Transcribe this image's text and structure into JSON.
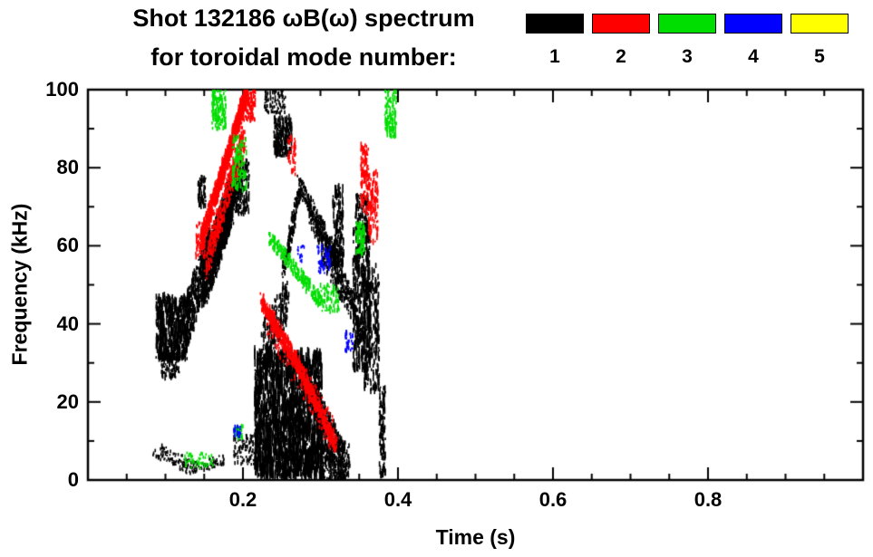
{
  "chart_data": {
    "type": "scatter",
    "title": "Shot 132186 ωB(ω) spectrum",
    "subtitle": "for toroidal mode number:",
    "xlabel": "Time (s)",
    "ylabel": "Frequency (kHz)",
    "xlim": [
      0.0,
      1.0
    ],
    "ylim": [
      0,
      100
    ],
    "x_minor": 0.05,
    "y_minor": 10,
    "grid": false,
    "legend_position": "top-right",
    "xticks": [
      {
        "value": 0.2,
        "label": "0.2"
      },
      {
        "value": 0.4,
        "label": "0.4"
      },
      {
        "value": 0.6,
        "label": "0.6"
      },
      {
        "value": 0.8,
        "label": "0.8"
      }
    ],
    "yticks": [
      {
        "value": 0,
        "label": "0"
      },
      {
        "value": 20,
        "label": "20"
      },
      {
        "value": 40,
        "label": "40"
      },
      {
        "value": 60,
        "label": "60"
      },
      {
        "value": 80,
        "label": "80"
      },
      {
        "value": 100,
        "label": "100"
      }
    ],
    "series": [
      {
        "name": "1",
        "color": "#000000",
        "features": [
          {
            "k": "blob",
            "x": [
              0.088,
              0.128
            ],
            "f": [
              31,
              47
            ],
            "n": 550,
            "d": 9
          },
          {
            "k": "blob",
            "x": [
              0.095,
              0.118
            ],
            "f": [
              26,
              33
            ],
            "n": 120,
            "d": 4
          },
          {
            "k": "stroke",
            "x": [
              0.124,
              0.156
            ],
            "f": [
              38,
              58
            ],
            "w": 7,
            "n": 420,
            "d": 6
          },
          {
            "k": "stroke",
            "x": [
              0.148,
              0.186
            ],
            "f": [
              50,
              72
            ],
            "w": 7,
            "n": 750,
            "d": 7
          },
          {
            "k": "stroke",
            "x": [
              0.168,
              0.198
            ],
            "f": [
              62,
              81
            ],
            "w": 5,
            "n": 520,
            "d": 6
          },
          {
            "k": "blob",
            "x": [
              0.19,
              0.208
            ],
            "f": [
              68,
              82
            ],
            "n": 160,
            "d": 5
          },
          {
            "k": "blob",
            "x": [
              0.142,
              0.152
            ],
            "f": [
              70,
              78
            ],
            "n": 70,
            "d": 5
          },
          {
            "k": "blob",
            "x": [
              0.24,
              0.263
            ],
            "f": [
              83,
              93
            ],
            "n": 240,
            "d": 6
          },
          {
            "k": "blob",
            "x": [
              0.228,
              0.255
            ],
            "f": [
              94,
              100
            ],
            "n": 90,
            "d": 3
          },
          {
            "k": "stroke",
            "x": [
              0.085,
              0.135
            ],
            "f": [
              8,
              3
            ],
            "w": 2,
            "n": 100,
            "d": 2
          },
          {
            "k": "stroke",
            "x": [
              0.135,
              0.175
            ],
            "f": [
              3,
              5
            ],
            "w": 1.5,
            "n": 70,
            "d": 2
          },
          {
            "k": "blob",
            "x": [
              0.188,
              0.222
            ],
            "f": [
              4,
              12
            ],
            "n": 110,
            "d": 3
          },
          {
            "k": "blob",
            "x": [
              0.215,
              0.302
            ],
            "f": [
              1,
              33
            ],
            "n": 1900,
            "d": 14
          },
          {
            "k": "stroke",
            "x": [
              0.225,
              0.258
            ],
            "f": [
              34,
              46
            ],
            "w": 6,
            "n": 260,
            "d": 5
          },
          {
            "k": "stroke",
            "x": [
              0.295,
              0.332
            ],
            "f": [
              16,
              2
            ],
            "w": 7,
            "n": 420,
            "d": 6
          },
          {
            "k": "blob",
            "x": [
              0.3,
              0.338
            ],
            "f": [
              0,
              9
            ],
            "n": 200,
            "d": 4
          },
          {
            "k": "stroke",
            "x": [
              0.252,
              0.274
            ],
            "f": [
              54,
              75
            ],
            "w": 2.5,
            "n": 170,
            "d": 4
          },
          {
            "k": "stroke",
            "x": [
              0.272,
              0.326
            ],
            "f": [
              76,
              55
            ],
            "w": 2.5,
            "n": 280,
            "d": 4
          },
          {
            "k": "stroke",
            "x": [
              0.286,
              0.342
            ],
            "f": [
              68,
              46
            ],
            "w": 2.5,
            "n": 230,
            "d": 4
          },
          {
            "k": "stroke",
            "x": [
              0.302,
              0.358
            ],
            "f": [
              58,
              37
            ],
            "w": 2.5,
            "n": 190,
            "d": 4
          },
          {
            "k": "blob",
            "x": [
              0.316,
              0.33
            ],
            "f": [
              55,
              75
            ],
            "n": 140,
            "d": 8
          },
          {
            "k": "blob",
            "x": [
              0.342,
              0.364
            ],
            "f": [
              28,
              64
            ],
            "n": 380,
            "d": 9
          },
          {
            "k": "blob",
            "x": [
              0.356,
              0.376
            ],
            "f": [
              22,
              55
            ],
            "n": 220,
            "d": 8
          },
          {
            "k": "blob",
            "x": [
              0.345,
              0.362
            ],
            "f": [
              64,
              73
            ],
            "n": 110,
            "d": 5
          },
          {
            "k": "blob",
            "x": [
              0.376,
              0.384
            ],
            "f": [
              1,
              24
            ],
            "n": 130,
            "d": 6
          }
        ]
      },
      {
        "name": "2",
        "color": "#ff0000",
        "features": [
          {
            "k": "stroke",
            "x": [
              0.146,
              0.206
            ],
            "f": [
              61,
              100
            ],
            "w": 2.5,
            "n": 950,
            "d": 5
          },
          {
            "k": "stroke",
            "x": [
              0.152,
              0.202
            ],
            "f": [
              55,
              88
            ],
            "w": 4,
            "n": 380,
            "d": 4
          },
          {
            "k": "blob",
            "x": [
              0.139,
              0.151
            ],
            "f": [
              57,
              66
            ],
            "n": 70,
            "d": 4
          },
          {
            "k": "blob",
            "x": [
              0.2,
              0.216
            ],
            "f": [
              92,
              100
            ],
            "n": 100,
            "d": 4
          },
          {
            "k": "stroke",
            "x": [
              0.224,
              0.272
            ],
            "f": [
              46,
              29
            ],
            "w": 2,
            "n": 420,
            "d": 4
          },
          {
            "k": "stroke",
            "x": [
              0.272,
              0.32
            ],
            "f": [
              29,
              9
            ],
            "w": 2,
            "n": 380,
            "d": 4
          },
          {
            "k": "stroke",
            "x": [
              0.23,
              0.315
            ],
            "f": [
              42,
              12
            ],
            "w": 4.5,
            "n": 160,
            "d": 3
          },
          {
            "k": "blob",
            "x": [
              0.352,
              0.362
            ],
            "f": [
              68,
              86
            ],
            "n": 100,
            "d": 6
          },
          {
            "k": "blob",
            "x": [
              0.362,
              0.374
            ],
            "f": [
              61,
              79
            ],
            "n": 100,
            "d": 6
          },
          {
            "k": "blob",
            "x": [
              0.258,
              0.268
            ],
            "f": [
              78,
              88
            ],
            "n": 45,
            "d": 4
          }
        ]
      },
      {
        "name": "3",
        "color": "#00dd00",
        "features": [
          {
            "k": "blob",
            "x": [
              0.16,
              0.178
            ],
            "f": [
              90,
              100
            ],
            "n": 130,
            "d": 5
          },
          {
            "k": "blob",
            "x": [
              0.186,
              0.205
            ],
            "f": [
              74,
              88
            ],
            "n": 110,
            "d": 5
          },
          {
            "k": "stroke",
            "x": [
              0.235,
              0.3
            ],
            "f": [
              62,
              46
            ],
            "w": 2,
            "n": 240,
            "d": 4
          },
          {
            "k": "blob",
            "x": [
              0.3,
              0.324
            ],
            "f": [
              43,
              50
            ],
            "n": 80,
            "d": 4
          },
          {
            "k": "blob",
            "x": [
              0.346,
              0.357
            ],
            "f": [
              58,
              66
            ],
            "n": 80,
            "d": 5
          },
          {
            "k": "blob",
            "x": [
              0.383,
              0.398
            ],
            "f": [
              88,
              100
            ],
            "n": 120,
            "d": 5
          },
          {
            "k": "blob",
            "x": [
              0.125,
              0.163
            ],
            "f": [
              3,
              7
            ],
            "n": 55,
            "d": 2
          },
          {
            "k": "blob",
            "x": [
              0.188,
              0.2
            ],
            "f": [
              10,
              14
            ],
            "n": 35,
            "d": 3
          }
        ]
      },
      {
        "name": "4",
        "color": "#0000ff",
        "features": [
          {
            "k": "blob",
            "x": [
              0.296,
              0.313
            ],
            "f": [
              53,
              60
            ],
            "n": 50,
            "d": 4
          },
          {
            "k": "blob",
            "x": [
              0.332,
              0.342
            ],
            "f": [
              33,
              38
            ],
            "n": 32,
            "d": 3
          },
          {
            "k": "blob",
            "x": [
              0.188,
              0.197
            ],
            "f": [
              11,
              14
            ],
            "n": 22,
            "d": 3
          },
          {
            "k": "blob",
            "x": [
              0.27,
              0.279
            ],
            "f": [
              56,
              60
            ],
            "n": 16,
            "d": 3
          }
        ]
      },
      {
        "name": "5",
        "color": "#ffff00",
        "features": []
      }
    ]
  }
}
